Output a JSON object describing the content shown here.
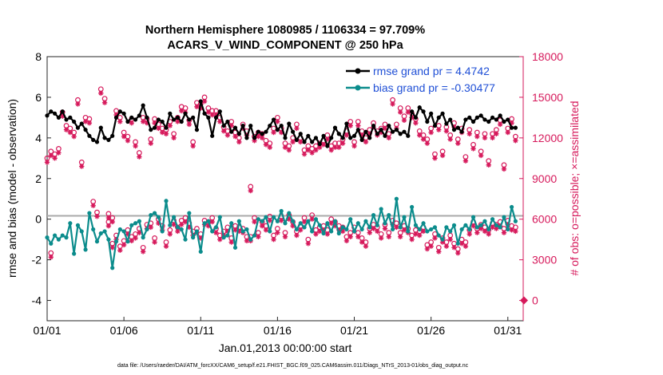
{
  "chart_data": {
    "type": "line",
    "title": "Northern Hemisphere 1080985 / 1106334 = 97.709%",
    "subtitle": "ACARS_V_WIND_COMPONENT @ 250 hPa",
    "xlabel": "Jan.01,2013 00:00:00 start",
    "ylabel": "rmse and bias (model - observation)",
    "y2label": "# of obs: o=possible; ×=assimilated",
    "footer": "data file: /Users/raeder/DAI/ATM_forcXX/CAM6_setup/f.e21.FHIST_BGC.f09_025.CAM6assim.011/Diags_NTrS_2013-01/obs_diag_output.nc",
    "x_tick_labels": [
      "01/01",
      "01/06",
      "01/11",
      "01/16",
      "01/21",
      "01/26",
      "01/31"
    ],
    "x_tick_values": [
      1,
      6,
      11,
      16,
      21,
      26,
      31
    ],
    "xlim": [
      1,
      32
    ],
    "ylim": [
      -5,
      8
    ],
    "y_ticks": [
      "8",
      "6",
      "4",
      "2",
      "0",
      "-2",
      "-4"
    ],
    "y2lim": [
      -1500,
      18000
    ],
    "y2_ticks": [
      "18000",
      "15000",
      "12000",
      "9000",
      "6000",
      "3000",
      "0"
    ],
    "colors": {
      "rmse": "#000000",
      "bias": "#0b8c8c",
      "obs": "#d6195b",
      "zero_line": "#aaaaaa",
      "legend_text": "#1f4fd6"
    },
    "series": [
      {
        "name": "rmse grand pr = 4.4742",
        "x": [
          1.0,
          1.25,
          1.5,
          1.75,
          2.0,
          2.25,
          2.5,
          2.75,
          3.0,
          3.25,
          3.5,
          3.75,
          4.0,
          4.25,
          4.5,
          4.75,
          5.0,
          5.25,
          5.5,
          5.75,
          6.0,
          6.25,
          6.5,
          6.75,
          7.0,
          7.25,
          7.5,
          7.75,
          8.0,
          8.25,
          8.5,
          8.75,
          9.0,
          9.25,
          9.5,
          9.75,
          10.0,
          10.25,
          10.5,
          10.75,
          11.0,
          11.25,
          11.5,
          11.75,
          12.0,
          12.25,
          12.5,
          12.75,
          13.0,
          13.25,
          13.5,
          13.75,
          14.0,
          14.25,
          14.5,
          14.75,
          15.0,
          15.25,
          15.5,
          15.75,
          16.0,
          16.25,
          16.5,
          16.75,
          17.0,
          17.25,
          17.5,
          17.75,
          18.0,
          18.25,
          18.5,
          18.75,
          19.0,
          19.25,
          19.5,
          19.75,
          20.0,
          20.25,
          20.5,
          20.75,
          21.0,
          21.25,
          21.5,
          21.75,
          22.0,
          22.25,
          22.5,
          22.75,
          23.0,
          23.25,
          23.5,
          23.75,
          24.0,
          24.25,
          24.5,
          24.75,
          25.0,
          25.25,
          25.5,
          25.75,
          26.0,
          26.25,
          26.5,
          26.75,
          27.0,
          27.25,
          27.5,
          27.75,
          28.0,
          28.25,
          28.5,
          28.75,
          29.0,
          29.25,
          29.5,
          29.75,
          30.0,
          30.25,
          30.5,
          30.75,
          31.0,
          31.25,
          31.5
        ],
        "values": [
          5.1,
          5.3,
          5.2,
          5.0,
          5.3,
          4.9,
          5.0,
          4.8,
          4.5,
          4.7,
          4.4,
          4.1,
          3.9,
          3.8,
          4.5,
          4.0,
          3.9,
          4.1,
          5.0,
          5.3,
          5.2,
          4.8,
          5.0,
          4.9,
          5.1,
          5.6,
          5.0,
          4.4,
          4.5,
          4.9,
          4.8,
          4.5,
          5.2,
          4.9,
          5.0,
          4.8,
          5.2,
          4.9,
          5.0,
          4.4,
          5.8,
          5.2,
          5.0,
          4.1,
          5.0,
          5.3,
          4.6,
          4.8,
          4.3,
          4.5,
          4.2,
          4.6,
          4.0,
          4.6,
          4.0,
          4.3,
          4.2,
          4.3,
          4.6,
          4.9,
          4.4,
          4.6,
          4.0,
          4.7,
          4.3,
          3.9,
          4.2,
          3.8,
          4.1,
          3.8,
          4.0,
          3.7,
          4.1,
          3.6,
          4.0,
          4.5,
          4.2,
          4.0,
          4.7,
          4.0,
          4.1,
          4.4,
          3.9,
          4.3,
          4.0,
          4.6,
          4.2,
          4.4,
          4.1,
          4.6,
          4.3,
          4.4,
          4.2,
          4.3,
          4.1,
          5.3,
          5.0,
          5.5,
          5.3,
          4.8,
          5.2,
          4.6,
          5.0,
          5.2,
          4.7,
          4.9,
          4.4,
          4.5,
          4.3,
          4.9,
          5.0,
          4.8,
          5.0,
          5.1,
          4.9,
          4.8,
          5.0,
          4.9,
          5.1,
          4.8,
          4.9,
          4.5,
          4.5
        ]
      },
      {
        "name": "bias grand pr = -0.30477",
        "x": [
          1.0,
          1.25,
          1.5,
          1.75,
          2.0,
          2.25,
          2.5,
          2.75,
          3.0,
          3.25,
          3.5,
          3.75,
          4.0,
          4.25,
          4.5,
          4.75,
          5.0,
          5.25,
          5.5,
          5.75,
          6.0,
          6.25,
          6.5,
          6.75,
          7.0,
          7.25,
          7.5,
          7.75,
          8.0,
          8.25,
          8.5,
          8.75,
          9.0,
          9.25,
          9.5,
          9.75,
          10.0,
          10.25,
          10.5,
          10.75,
          11.0,
          11.25,
          11.5,
          11.75,
          12.0,
          12.25,
          12.5,
          12.75,
          13.0,
          13.25,
          13.5,
          13.75,
          14.0,
          14.25,
          14.5,
          14.75,
          15.0,
          15.25,
          15.5,
          15.75,
          16.0,
          16.25,
          16.5,
          16.75,
          17.0,
          17.25,
          17.5,
          17.75,
          18.0,
          18.25,
          18.5,
          18.75,
          19.0,
          19.25,
          19.5,
          19.75,
          20.0,
          20.25,
          20.5,
          20.75,
          21.0,
          21.25,
          21.5,
          21.75,
          22.0,
          22.25,
          22.5,
          22.75,
          23.0,
          23.25,
          23.5,
          23.75,
          24.0,
          24.25,
          24.5,
          24.75,
          25.0,
          25.25,
          25.5,
          25.75,
          26.0,
          26.25,
          26.5,
          26.75,
          27.0,
          27.25,
          27.5,
          27.75,
          28.0,
          28.25,
          28.5,
          28.75,
          29.0,
          29.25,
          29.5,
          29.75,
          30.0,
          30.25,
          30.5,
          30.75,
          31.0,
          31.25,
          31.5
        ],
        "values": [
          -0.9,
          -1.2,
          -0.8,
          -1.0,
          -0.8,
          -0.9,
          -0.2,
          -1.7,
          -0.3,
          -0.6,
          -1.5,
          0.3,
          -0.5,
          -1.1,
          -0.7,
          -0.6,
          -1.0,
          -2.4,
          -1.1,
          -0.5,
          -0.6,
          -1.1,
          -0.3,
          -0.2,
          -0.1,
          -0.9,
          -0.5,
          0.2,
          0.3,
          0.1,
          -0.6,
          0.9,
          -0.3,
          0.1,
          -0.4,
          -0.5,
          -1.0,
          0.3,
          -0.9,
          -0.6,
          -1.6,
          -0.2,
          -0.1,
          -0.6,
          -0.4,
          0.1,
          -0.9,
          -0.8,
          -0.2,
          -1.4,
          -0.1,
          -0.6,
          -0.5,
          -1.0,
          -0.8,
          0.0,
          -0.1,
          0.1,
          -0.6,
          0.1,
          -0.1,
          0.4,
          -0.2,
          0.3,
          -0.1,
          -0.5,
          -0.2,
          -0.4,
          -0.1,
          -0.6,
          0.0,
          -0.3,
          -0.7,
          -0.2,
          -0.6,
          -0.1,
          -0.7,
          -0.4,
          -0.5,
          0.0,
          -0.6,
          -0.2,
          -0.5,
          -0.1,
          -0.4,
          0.2,
          -0.3,
          0.5,
          -0.2,
          0.2,
          -0.5,
          1.0,
          -0.4,
          0.1,
          -0.6,
          0.6,
          -0.3,
          -0.5,
          -0.2,
          -0.6,
          -0.5,
          -0.4,
          -0.8,
          -1.0,
          -0.4,
          -0.6,
          -0.3,
          -1.2,
          -0.5,
          -0.3,
          -0.5,
          0.1,
          -0.4,
          -0.3,
          -0.1,
          -0.5,
          0.0,
          -0.3,
          -0.4,
          0.1,
          -0.5,
          0.6,
          -0.1
        ]
      }
    ],
    "obs_possible": [
      10500,
      11000,
      10800,
      11200,
      13900,
      12900,
      12700,
      12400,
      14800,
      10200,
      13500,
      13400,
      7300,
      6500,
      15600,
      14900,
      6400,
      6100,
      14000,
      13500,
      12400,
      12100,
      13400,
      11700,
      10900,
      13500,
      13400,
      11900,
      13400,
      13000,
      12700,
      12600,
      13200,
      12300,
      13500,
      14300,
      14200,
      13300,
      11700,
      14600,
      14500,
      15000,
      14200,
      14000,
      14000,
      13500,
      12800,
      12500,
      13200,
      12400,
      12000,
      13000,
      12500,
      8400,
      12100,
      12400,
      12300,
      11800,
      11600,
      12700,
      13500,
      12700,
      11600,
      11400,
      12000,
      13000,
      12000,
      11100,
      11400,
      11200,
      11400,
      11600,
      11800,
      12200,
      11400,
      11600,
      11600,
      11900,
      12500,
      13200,
      11700,
      13200,
      12500,
      12000,
      12600,
      13100,
      12500,
      12700,
      13000,
      12300,
      14800,
      13000,
      14200,
      13600,
      14200,
      13800,
      13400,
      12500,
      12200,
      11900,
      12700,
      10800,
      12900,
      11000,
      12800,
      12200,
      13100,
      11900,
      12700,
      10600,
      12600,
      11500,
      12400,
      11000,
      12300,
      10300,
      12300,
      12600,
      13300,
      10000,
      12700,
      13400,
      12100
    ],
    "obs_assimilated": [
      10200,
      10700,
      10500,
      10900,
      13600,
      12600,
      12400,
      12100,
      14500,
      9900,
      13200,
      13100,
      7000,
      6200,
      15300,
      14600,
      6100,
      5800,
      13700,
      13200,
      12100,
      11800,
      13100,
      11400,
      10600,
      13200,
      13100,
      11600,
      13100,
      12700,
      12400,
      12300,
      12900,
      12000,
      13200,
      14000,
      13900,
      13000,
      11400,
      14300,
      14200,
      14700,
      13900,
      13700,
      13700,
      13200,
      12500,
      12200,
      12900,
      12100,
      11700,
      12700,
      12200,
      8100,
      11800,
      12100,
      12000,
      11500,
      11300,
      12400,
      13200,
      12400,
      11300,
      11100,
      11700,
      12700,
      11700,
      10800,
      11100,
      10900,
      11100,
      11300,
      11500,
      11900,
      11100,
      11300,
      11300,
      11600,
      12200,
      12900,
      11400,
      12900,
      12200,
      11700,
      12300,
      12800,
      12200,
      12400,
      12700,
      12000,
      14500,
      12700,
      13900,
      13300,
      13900,
      13500,
      13100,
      12200,
      11900,
      11600,
      12400,
      10500,
      12600,
      10700,
      12500,
      11900,
      12800,
      11600,
      12400,
      10300,
      12300,
      11200,
      12100,
      10700,
      12000,
      10000,
      12000,
      12300,
      13000,
      9700,
      12400,
      13100,
      11800
    ],
    "bias_obs_possible": [
      -300,
      3500,
      -300,
      -300,
      -300,
      -300,
      -300,
      -300,
      -300,
      -300,
      -300,
      -300,
      -300,
      -300,
      -300,
      -300,
      5800,
      4200,
      4800,
      4000,
      4400,
      5200,
      4700,
      4900,
      5300,
      3900,
      5600,
      5700,
      4600,
      6000,
      5500,
      4300,
      5200,
      5900,
      5400,
      5900,
      6100,
      5700,
      5100,
      5300,
      4900,
      5900,
      5800,
      6100,
      5300,
      4800,
      5100,
      5400,
      4600,
      5500,
      5400,
      5300,
      4700,
      4700,
      6100,
      5000,
      5800,
      5500,
      6200,
      4800,
      5300,
      6200,
      5000,
      6300,
      5800,
      5100,
      5500,
      6100,
      4500,
      6300,
      5200,
      5400,
      5500,
      5200,
      6000,
      5800,
      5500,
      5400,
      4700,
      5000,
      5400,
      5000,
      4600,
      4300,
      5300,
      5600,
      5400,
      4900,
      5600,
      5000,
      5900,
      5700,
      5000,
      5500,
      5300,
      4800,
      5200,
      5100,
      5400,
      4100,
      4300,
      4900,
      3900,
      4600,
      4300,
      4800,
      4200,
      3800,
      4500,
      4300,
      5200,
      5800,
      5300,
      5600,
      5400,
      5200,
      5700,
      5600,
      5800,
      5300,
      5900,
      5500,
      5400
    ],
    "side_marker_value": 0,
    "grid": false,
    "legend_position": "top-right"
  }
}
